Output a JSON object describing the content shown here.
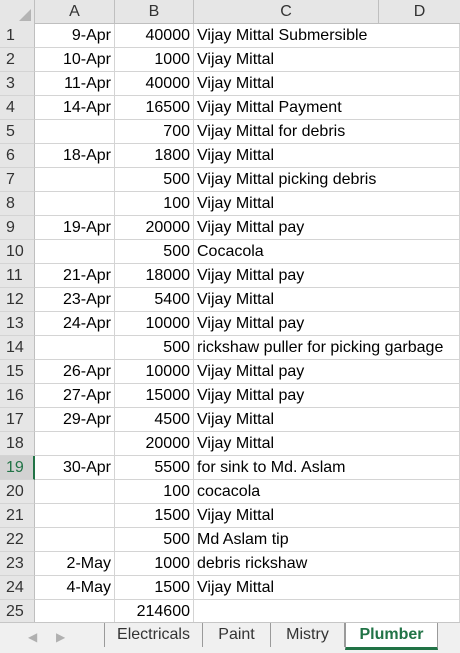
{
  "columns": [
    "A",
    "B",
    "C",
    "D"
  ],
  "rows": [
    {
      "n": "1",
      "a": "9-Apr",
      "b": "40000",
      "c": "Vijay Mittal Submersible"
    },
    {
      "n": "2",
      "a": "10-Apr",
      "b": "1000",
      "c": "Vijay Mittal"
    },
    {
      "n": "3",
      "a": "11-Apr",
      "b": "40000",
      "c": "Vijay Mittal"
    },
    {
      "n": "4",
      "a": "14-Apr",
      "b": "16500",
      "c": "Vijay Mittal Payment"
    },
    {
      "n": "5",
      "a": "",
      "b": "700",
      "c": "Vijay Mittal for debris"
    },
    {
      "n": "6",
      "a": "18-Apr",
      "b": "1800",
      "c": "Vijay Mittal"
    },
    {
      "n": "7",
      "a": "",
      "b": "500",
      "c": "Vijay Mittal picking debris"
    },
    {
      "n": "8",
      "a": "",
      "b": "100",
      "c": "Vijay Mittal"
    },
    {
      "n": "9",
      "a": "19-Apr",
      "b": "20000",
      "c": "Vijay Mittal pay"
    },
    {
      "n": "10",
      "a": "",
      "b": "500",
      "c": "Cocacola"
    },
    {
      "n": "11",
      "a": "21-Apr",
      "b": "18000",
      "c": "Vijay Mittal pay"
    },
    {
      "n": "12",
      "a": "23-Apr",
      "b": "5400",
      "c": "Vijay Mittal"
    },
    {
      "n": "13",
      "a": "24-Apr",
      "b": "10000",
      "c": "Vijay Mittal pay"
    },
    {
      "n": "14",
      "a": "",
      "b": "500",
      "c": "rickshaw puller for picking garbage"
    },
    {
      "n": "15",
      "a": "26-Apr",
      "b": "10000",
      "c": "Vijay Mittal pay"
    },
    {
      "n": "16",
      "a": "27-Apr",
      "b": "15000",
      "c": "Vijay Mittal pay"
    },
    {
      "n": "17",
      "a": "29-Apr",
      "b": "4500",
      "c": "Vijay Mittal"
    },
    {
      "n": "18",
      "a": "",
      "b": "20000",
      "c": "Vijay Mittal"
    },
    {
      "n": "19",
      "a": "30-Apr",
      "b": "5500",
      "c": "for sink to Md. Aslam"
    },
    {
      "n": "20",
      "a": "",
      "b": "100",
      "c": "cocacola"
    },
    {
      "n": "21",
      "a": "",
      "b": "1500",
      "c": "Vijay Mittal"
    },
    {
      "n": "22",
      "a": "",
      "b": "500",
      "c": "Md Aslam tip"
    },
    {
      "n": "23",
      "a": "2-May",
      "b": "1000",
      "c": "debris rickshaw"
    },
    {
      "n": "24",
      "a": "4-May",
      "b": "1500",
      "c": "Vijay Mittal"
    },
    {
      "n": "25",
      "a": "",
      "b": "214600",
      "c": ""
    }
  ],
  "active_row": "19",
  "sheet_tabs": [
    "Electricals",
    "Paint",
    "Mistry",
    "Plumber"
  ],
  "active_tab": "Plumber",
  "nav": {
    "prev": "◀",
    "next": "▶"
  },
  "accent_color": "#217346"
}
